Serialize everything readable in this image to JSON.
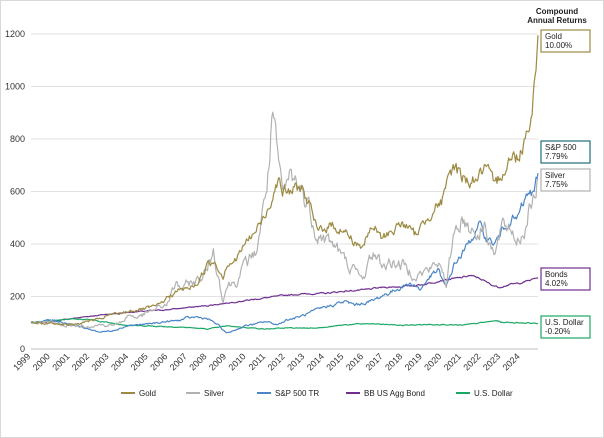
{
  "chart_data": {
    "type": "line",
    "title": "",
    "xlabel": "",
    "ylabel": "",
    "ylim": [
      0,
      1200
    ],
    "y_ticks": [
      "0",
      "200",
      "400",
      "600",
      "800",
      "1000",
      "1200"
    ],
    "xlim": [
      1999,
      2024.9
    ],
    "x_ticks": [
      "1999",
      "2000",
      "2001",
      "2002",
      "2003",
      "2004",
      "2005",
      "2006",
      "2007",
      "2008",
      "2009",
      "2010",
      "2011",
      "2012",
      "2013",
      "2014",
      "2015",
      "2016",
      "2017",
      "2018",
      "2019",
      "2020",
      "2021",
      "2022",
      "2023",
      "2024"
    ],
    "grid": true,
    "legend_position": "bottom",
    "cagr_header": [
      "Compound",
      "Annual Returns"
    ],
    "series": [
      {
        "name": "Gold",
        "color": "#9c8a42",
        "label_value": "10.00%",
        "points": [
          [
            1999,
            100
          ],
          [
            1999.5,
            97
          ],
          [
            2000,
            98
          ],
          [
            2000.5,
            96
          ],
          [
            2001,
            92
          ],
          [
            2001.5,
            98
          ],
          [
            2002,
            108
          ],
          [
            2002.5,
            112
          ],
          [
            2003,
            130
          ],
          [
            2003.5,
            133
          ],
          [
            2004,
            145
          ],
          [
            2004.5,
            150
          ],
          [
            2005,
            155
          ],
          [
            2005.5,
            165
          ],
          [
            2006,
            198
          ],
          [
            2006.5,
            222
          ],
          [
            2007,
            230
          ],
          [
            2007.5,
            250
          ],
          [
            2008,
            320
          ],
          [
            2008.4,
            335
          ],
          [
            2008.8,
            275
          ],
          [
            2009,
            325
          ],
          [
            2009.5,
            340
          ],
          [
            2009.9,
            400
          ],
          [
            2010.5,
            450
          ],
          [
            2011,
            515
          ],
          [
            2011.6,
            650
          ],
          [
            2011.9,
            600
          ],
          [
            2012.3,
            600
          ],
          [
            2012.8,
            620
          ],
          [
            2013.3,
            530
          ],
          [
            2013.6,
            450
          ],
          [
            2014,
            465
          ],
          [
            2014.5,
            470
          ],
          [
            2015,
            450
          ],
          [
            2015.5,
            410
          ],
          [
            2015.9,
            390
          ],
          [
            2016.5,
            470
          ],
          [
            2016.9,
            420
          ],
          [
            2017.5,
            455
          ],
          [
            2018,
            480
          ],
          [
            2018.6,
            435
          ],
          [
            2019,
            470
          ],
          [
            2019.6,
            545
          ],
          [
            2020,
            560
          ],
          [
            2020.6,
            700
          ],
          [
            2021,
            660
          ],
          [
            2021.4,
            640
          ],
          [
            2021.9,
            660
          ],
          [
            2022.2,
            690
          ],
          [
            2022.7,
            610
          ],
          [
            2023,
            670
          ],
          [
            2023.4,
            720
          ],
          [
            2023.9,
            735
          ],
          [
            2024.2,
            800
          ],
          [
            2024.5,
            880
          ],
          [
            2024.7,
            990
          ],
          [
            2024.9,
            1195
          ]
        ]
      },
      {
        "name": "Silver",
        "color": "#b2b2b2",
        "label_value": "7.75%",
        "points": [
          [
            1999,
            100
          ],
          [
            1999.5,
            103
          ],
          [
            2000,
            100
          ],
          [
            2000.5,
            95
          ],
          [
            2001,
            90
          ],
          [
            2001.5,
            88
          ],
          [
            2002,
            90
          ],
          [
            2002.5,
            92
          ],
          [
            2003,
            90
          ],
          [
            2003.5,
            95
          ],
          [
            2004,
            130
          ],
          [
            2004.5,
            120
          ],
          [
            2005,
            140
          ],
          [
            2005.5,
            155
          ],
          [
            2006,
            175
          ],
          [
            2006.4,
            250
          ],
          [
            2006.8,
            225
          ],
          [
            2007,
            250
          ],
          [
            2007.5,
            260
          ],
          [
            2008,
            300
          ],
          [
            2008.3,
            380
          ],
          [
            2008.8,
            190
          ],
          [
            2009,
            240
          ],
          [
            2009.5,
            260
          ],
          [
            2010,
            330
          ],
          [
            2010.5,
            370
          ],
          [
            2010.9,
            545
          ],
          [
            2011.2,
            720
          ],
          [
            2011.3,
            890
          ],
          [
            2011.6,
            720
          ],
          [
            2011.9,
            570
          ],
          [
            2012.2,
            660
          ],
          [
            2012.7,
            620
          ],
          [
            2013.2,
            540
          ],
          [
            2013.6,
            440
          ],
          [
            2014,
            420
          ],
          [
            2014.5,
            400
          ],
          [
            2015,
            340
          ],
          [
            2015.5,
            300
          ],
          [
            2015.9,
            265
          ],
          [
            2016.5,
            370
          ],
          [
            2016.9,
            320
          ],
          [
            2017.5,
            330
          ],
          [
            2018,
            320
          ],
          [
            2018.5,
            290
          ],
          [
            2018.9,
            285
          ],
          [
            2019.5,
            310
          ],
          [
            2020,
            330
          ],
          [
            2020.2,
            220
          ],
          [
            2020.6,
            450
          ],
          [
            2021,
            500
          ],
          [
            2021.5,
            460
          ],
          [
            2021.9,
            440
          ],
          [
            2022.2,
            480
          ],
          [
            2022.7,
            350
          ],
          [
            2023,
            450
          ],
          [
            2023.4,
            470
          ],
          [
            2023.8,
            420
          ],
          [
            2024.2,
            440
          ],
          [
            2024.5,
            580
          ],
          [
            2024.7,
            560
          ],
          [
            2024.9,
            650
          ]
        ]
      },
      {
        "name": "S&P 500 TR",
        "color": "#4a86c8",
        "label_value": "7.79%",
        "points": [
          [
            1999,
            100
          ],
          [
            1999.5,
            105
          ],
          [
            2000,
            110
          ],
          [
            2000.5,
            105
          ],
          [
            2001,
            95
          ],
          [
            2001.5,
            85
          ],
          [
            2002,
            75
          ],
          [
            2002.5,
            65
          ],
          [
            2003,
            68
          ],
          [
            2003.5,
            78
          ],
          [
            2004,
            90
          ],
          [
            2004.5,
            92
          ],
          [
            2005,
            95
          ],
          [
            2005.5,
            100
          ],
          [
            2006,
            105
          ],
          [
            2006.5,
            108
          ],
          [
            2007,
            118
          ],
          [
            2007.5,
            122
          ],
          [
            2008,
            115
          ],
          [
            2008.5,
            95
          ],
          [
            2009,
            60
          ],
          [
            2009.5,
            75
          ],
          [
            2010,
            90
          ],
          [
            2010.5,
            95
          ],
          [
            2011,
            105
          ],
          [
            2011.6,
            92
          ],
          [
            2012,
            110
          ],
          [
            2012.5,
            118
          ],
          [
            2013,
            130
          ],
          [
            2013.5,
            145
          ],
          [
            2014,
            160
          ],
          [
            2014.5,
            170
          ],
          [
            2015,
            180
          ],
          [
            2015.6,
            168
          ],
          [
            2016,
            175
          ],
          [
            2016.5,
            185
          ],
          [
            2017,
            205
          ],
          [
            2017.5,
            220
          ],
          [
            2018,
            240
          ],
          [
            2018.5,
            250
          ],
          [
            2018.9,
            225
          ],
          [
            2019.3,
            270
          ],
          [
            2019.8,
            300
          ],
          [
            2020.2,
            230
          ],
          [
            2020.6,
            320
          ],
          [
            2021,
            360
          ],
          [
            2021.5,
            420
          ],
          [
            2021.9,
            470
          ],
          [
            2022.3,
            420
          ],
          [
            2022.7,
            400
          ],
          [
            2023,
            440
          ],
          [
            2023.5,
            500
          ],
          [
            2023.8,
            490
          ],
          [
            2024.2,
            560
          ],
          [
            2024.5,
            600
          ],
          [
            2024.7,
            580
          ],
          [
            2024.9,
            670
          ]
        ]
      },
      {
        "name": "BB US Agg Bond",
        "color": "#6f2f8f",
        "label_value": "4.02%",
        "points": [
          [
            1999,
            100
          ],
          [
            2000,
            105
          ],
          [
            2001,
            115
          ],
          [
            2002,
            125
          ],
          [
            2003,
            133
          ],
          [
            2004,
            140
          ],
          [
            2005,
            145
          ],
          [
            2006,
            150
          ],
          [
            2007,
            158
          ],
          [
            2008,
            165
          ],
          [
            2009,
            175
          ],
          [
            2010,
            185
          ],
          [
            2011,
            195
          ],
          [
            2012,
            205
          ],
          [
            2013,
            210
          ],
          [
            2014,
            212
          ],
          [
            2015,
            220
          ],
          [
            2016,
            225
          ],
          [
            2017,
            235
          ],
          [
            2018,
            238
          ],
          [
            2019,
            245
          ],
          [
            2020,
            262
          ],
          [
            2021,
            272
          ],
          [
            2021.4,
            280
          ],
          [
            2021.9,
            270
          ],
          [
            2022.5,
            245
          ],
          [
            2022.9,
            235
          ],
          [
            2023.4,
            245
          ],
          [
            2023.9,
            250
          ],
          [
            2024.4,
            260
          ],
          [
            2024.9,
            272
          ]
        ]
      },
      {
        "name": "U.S. Dollar",
        "color": "#1aa865",
        "label_value": "-0.20%",
        "points": [
          [
            1999,
            100
          ],
          [
            2000,
            108
          ],
          [
            2001,
            115
          ],
          [
            2002,
            112
          ],
          [
            2003,
            100
          ],
          [
            2004,
            90
          ],
          [
            2005,
            88
          ],
          [
            2006,
            85
          ],
          [
            2007,
            82
          ],
          [
            2008,
            76
          ],
          [
            2008.8,
            85
          ],
          [
            2009,
            88
          ],
          [
            2010,
            82
          ],
          [
            2011,
            76
          ],
          [
            2012,
            80
          ],
          [
            2013,
            80
          ],
          [
            2014,
            82
          ],
          [
            2015,
            92
          ],
          [
            2016,
            96
          ],
          [
            2017,
            94
          ],
          [
            2018,
            90
          ],
          [
            2019,
            93
          ],
          [
            2020,
            94
          ],
          [
            2021,
            90
          ],
          [
            2022,
            100
          ],
          [
            2022.8,
            108
          ],
          [
            2023,
            102
          ],
          [
            2024,
            100
          ],
          [
            2024.9,
            98
          ]
        ]
      }
    ]
  }
}
